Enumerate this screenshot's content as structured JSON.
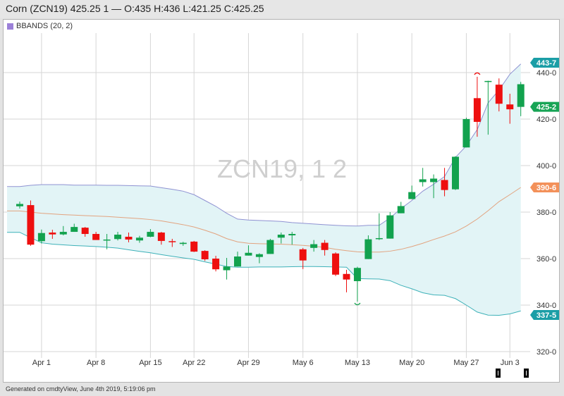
{
  "header": {
    "title": "Corn (ZCN19) 425.25 1 — O:435 H:436 L:421.25 C:425.25"
  },
  "legend": {
    "label": "BBANDS (20, 2)",
    "color": "#9b80d8"
  },
  "watermark": "ZCN19, 1 2",
  "footer": "Generated on cmdtyView, June 4th 2019, 5:19:06 pm",
  "colors": {
    "up": "#12a24e",
    "down": "#ee0f0f",
    "upper_band": "#8f92d2",
    "middle_band": "#e2a37f",
    "lower_band": "#3db1b8",
    "band_fill": "#e2f4f6",
    "grid": "#d6d6d6"
  },
  "flags": [
    {
      "label": "443-7",
      "value": 443.7,
      "color": "#1b9ea6"
    },
    {
      "label": "425-2",
      "value": 425.25,
      "color": "#17a455"
    },
    {
      "label": "390-6",
      "value": 390.6,
      "color": "#f3915a"
    },
    {
      "label": "337-5",
      "value": 337.5,
      "color": "#1b9ea6"
    }
  ],
  "chart_data": {
    "type": "candlestick",
    "title": "",
    "ylim": [
      320,
      445
    ],
    "y_ticks": [
      {
        "value": 440,
        "label": "440-0"
      },
      {
        "value": 420,
        "label": "420-0"
      },
      {
        "value": 400,
        "label": "400-0"
      },
      {
        "value": 380,
        "label": "380-0"
      },
      {
        "value": 360,
        "label": "360-0"
      },
      {
        "value": 340,
        "label": "340-0"
      },
      {
        "value": 320,
        "label": "320-0"
      }
    ],
    "x_ticks": [
      {
        "label": "Apr 1",
        "index": 2
      },
      {
        "label": "Apr 8",
        "index": 7
      },
      {
        "label": "Apr 15",
        "index": 12
      },
      {
        "label": "Apr 22",
        "index": 16
      },
      {
        "label": "Apr 29",
        "index": 21
      },
      {
        "label": "May 6",
        "index": 26
      },
      {
        "label": "May 13",
        "index": 31
      },
      {
        "label": "May 20",
        "index": 36
      },
      {
        "label": "May 27",
        "index": 41
      },
      {
        "label": "Jun 3",
        "index": 45
      }
    ],
    "grid": true,
    "candles": [
      {
        "d": "2019-03-28",
        "o": 382.5,
        "h": 384.5,
        "l": 381.5,
        "c": 383.5,
        "up": true
      },
      {
        "d": "2019-03-29",
        "o": 383,
        "h": 385,
        "l": 365.5,
        "c": 366,
        "up": false
      },
      {
        "d": "2019-04-01",
        "o": 367.5,
        "h": 372.5,
        "l": 366.5,
        "c": 371,
        "up": true
      },
      {
        "d": "2019-04-02",
        "o": 371.2,
        "h": 372.4,
        "l": 368.5,
        "c": 370.4,
        "up": false
      },
      {
        "d": "2019-04-03",
        "o": 370.4,
        "h": 374,
        "l": 370,
        "c": 371.5,
        "up": true
      },
      {
        "d": "2019-04-04",
        "o": 371.5,
        "h": 375,
        "l": 371.5,
        "c": 373.6,
        "up": true
      },
      {
        "d": "2019-04-05",
        "o": 373.3,
        "h": 373.6,
        "l": 369.4,
        "c": 370.6,
        "up": false
      },
      {
        "d": "2019-04-08",
        "o": 370.6,
        "h": 371.5,
        "l": 368,
        "c": 368,
        "up": false
      },
      {
        "d": "2019-04-09",
        "o": 368,
        "h": 370.6,
        "l": 364,
        "c": 368.2,
        "up": true
      },
      {
        "d": "2019-04-10",
        "o": 368.4,
        "h": 371.5,
        "l": 367.8,
        "c": 370.3,
        "up": true
      },
      {
        "d": "2019-04-11",
        "o": 369.4,
        "h": 371.2,
        "l": 367,
        "c": 368.2,
        "up": false
      },
      {
        "d": "2019-04-12",
        "o": 367.8,
        "h": 369.8,
        "l": 366.8,
        "c": 369,
        "up": true
      },
      {
        "d": "2019-04-15",
        "o": 369.4,
        "h": 372.7,
        "l": 369.2,
        "c": 371.5,
        "up": true
      },
      {
        "d": "2019-04-16",
        "o": 371.2,
        "h": 371.5,
        "l": 366,
        "c": 367.6,
        "up": false
      },
      {
        "d": "2019-04-17",
        "o": 367.5,
        "h": 368.5,
        "l": 365,
        "c": 367.1,
        "up": false
      },
      {
        "d": "2019-04-18",
        "o": 366.3,
        "h": 367.2,
        "l": 365.5,
        "c": 366.8,
        "up": true
      },
      {
        "d": "2019-04-22",
        "o": 367.3,
        "h": 367.6,
        "l": 362.8,
        "c": 363,
        "up": false
      },
      {
        "d": "2019-04-23",
        "o": 363.3,
        "h": 363.6,
        "l": 359,
        "c": 359.7,
        "up": false
      },
      {
        "d": "2019-04-24",
        "o": 360,
        "h": 361.2,
        "l": 354.5,
        "c": 355.4,
        "up": false
      },
      {
        "d": "2019-04-25",
        "o": 355,
        "h": 360.3,
        "l": 351,
        "c": 356.6,
        "up": true
      },
      {
        "d": "2019-04-26",
        "o": 356.6,
        "h": 363,
        "l": 356.6,
        "c": 360.9,
        "up": true
      },
      {
        "d": "2019-04-29",
        "o": 361.3,
        "h": 365.7,
        "l": 361.3,
        "c": 362.5,
        "up": true
      },
      {
        "d": "2019-04-30",
        "o": 360.7,
        "h": 362.3,
        "l": 358,
        "c": 361.9,
        "up": true
      },
      {
        "d": "2019-05-01",
        "o": 362,
        "h": 368.5,
        "l": 362,
        "c": 368,
        "up": true
      },
      {
        "d": "2019-05-02",
        "o": 369,
        "h": 371.2,
        "l": 366.5,
        "c": 370.3,
        "up": true
      },
      {
        "d": "2019-05-03",
        "o": 370,
        "h": 371.5,
        "l": 366,
        "c": 370.6,
        "up": true
      },
      {
        "d": "2019-05-06",
        "o": 364,
        "h": 364.6,
        "l": 355.5,
        "c": 359.2,
        "up": false
      },
      {
        "d": "2019-05-07",
        "o": 364.6,
        "h": 368,
        "l": 363,
        "c": 366.2,
        "up": true
      },
      {
        "d": "2019-05-08",
        "o": 366.8,
        "h": 368,
        "l": 361.3,
        "c": 363.7,
        "up": false
      },
      {
        "d": "2019-05-09",
        "o": 362.2,
        "h": 362.7,
        "l": 352.5,
        "c": 353.1,
        "up": false
      },
      {
        "d": "2019-05-10",
        "o": 353.4,
        "h": 355.2,
        "l": 345.5,
        "c": 351,
        "up": false
      },
      {
        "d": "2019-05-13",
        "o": 350.3,
        "h": 356.5,
        "l": 341.5,
        "c": 356,
        "up": true
      },
      {
        "d": "2019-05-14",
        "o": 359.8,
        "h": 370,
        "l": 359.8,
        "c": 368.3,
        "up": true
      },
      {
        "d": "2019-05-15",
        "o": 368.5,
        "h": 379.5,
        "l": 368,
        "c": 368.8,
        "up": true
      },
      {
        "d": "2019-05-16",
        "o": 368.6,
        "h": 380,
        "l": 368.6,
        "c": 378.6,
        "up": true
      },
      {
        "d": "2019-05-17",
        "o": 379.5,
        "h": 384.4,
        "l": 379.5,
        "c": 382.6,
        "up": true
      },
      {
        "d": "2019-05-20",
        "o": 385.6,
        "h": 391.4,
        "l": 385.6,
        "c": 388.6,
        "up": true
      },
      {
        "d": "2019-05-21",
        "o": 392.9,
        "h": 399,
        "l": 391,
        "c": 394.1,
        "up": true
      },
      {
        "d": "2019-05-22",
        "o": 392.9,
        "h": 396.2,
        "l": 386,
        "c": 394.4,
        "up": true
      },
      {
        "d": "2019-05-23",
        "o": 393.8,
        "h": 399,
        "l": 386.8,
        "c": 389.5,
        "up": false
      },
      {
        "d": "2019-05-24",
        "o": 389.8,
        "h": 404,
        "l": 389.5,
        "c": 403.8,
        "up": true
      },
      {
        "d": "2019-05-28",
        "o": 407.8,
        "h": 420.6,
        "l": 407.8,
        "c": 420,
        "up": true
      },
      {
        "d": "2019-05-29",
        "o": 429,
        "h": 438.2,
        "l": 412.4,
        "c": 418.8,
        "up": false
      },
      {
        "d": "2019-05-30",
        "o": 436,
        "h": 436.5,
        "l": 413.3,
        "c": 436.4,
        "up": true
      },
      {
        "d": "2019-05-31",
        "o": 434.8,
        "h": 437.5,
        "l": 423.3,
        "c": 426.6,
        "up": false
      },
      {
        "d": "2019-06-03",
        "o": 426.3,
        "h": 430.9,
        "l": 418,
        "c": 424.2,
        "up": false
      },
      {
        "d": "2019-06-04",
        "o": 435,
        "h": 436,
        "l": 421.25,
        "c": 425.25,
        "up": true
      }
    ],
    "bbands": {
      "upper": [
        391,
        391.5,
        391.8,
        391.8,
        391.8,
        391.6,
        391.6,
        391.6,
        391.5,
        391.5,
        391.4,
        391.3,
        391.2,
        390.5,
        389.8,
        389,
        387.5,
        385,
        382.5,
        379.5,
        377,
        376.6,
        376.4,
        376.2,
        376,
        375.5,
        375.2,
        374.9,
        374.6,
        374.3,
        374.1,
        374,
        374.3,
        374.3,
        377.5,
        381.5,
        385,
        389,
        392,
        395.3,
        403.5,
        408.5,
        415.5,
        427,
        432.5,
        439.3,
        443.7
      ],
      "middle": [
        380.5,
        380,
        379.5,
        379.2,
        378.9,
        378.7,
        378.5,
        378.3,
        378.1,
        377.8,
        377.5,
        377.2,
        376.8,
        376.2,
        375.4,
        374.6,
        373.6,
        372.2,
        370.6,
        368.6,
        367.2,
        366.6,
        366.4,
        366.3,
        366.2,
        366,
        365.7,
        365.3,
        364.8,
        364,
        363.4,
        362.9,
        362.8,
        362.8,
        363.2,
        364,
        365.2,
        366.6,
        368.2,
        369.7,
        371.5,
        374,
        377,
        380.6,
        384.5,
        387.5,
        390.6
      ],
      "lower": [
        371.3,
        369,
        366.8,
        366.2,
        365.9,
        365.6,
        365.4,
        365.2,
        364.9,
        364.5,
        363.8,
        363.1,
        362.5,
        361.7,
        361,
        360.3,
        359.7,
        358.6,
        357.6,
        356.6,
        356.3,
        356.3,
        356.4,
        356.4,
        356.4,
        356.5,
        356.6,
        356.6,
        356.5,
        356.4,
        356.3,
        351.4,
        351.3,
        351.2,
        350.5,
        348.5,
        347,
        345.3,
        344.4,
        344.2,
        342.8,
        340,
        337,
        335.7,
        335.6,
        336.2,
        337.5
      ]
    }
  }
}
